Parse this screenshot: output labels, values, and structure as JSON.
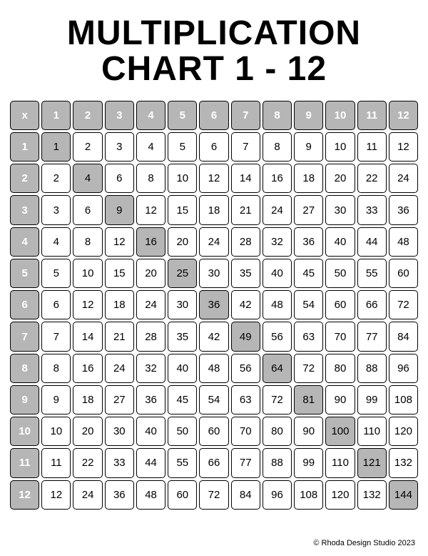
{
  "title_line1": "MULTIPLICATION",
  "title_line2": "CHART 1 - 12",
  "copyright": "© Rhoda Design Studio 2023",
  "chart": {
    "type": "table",
    "corner_label": "x",
    "size": 12,
    "colors": {
      "header_bg": "#b6b6b6",
      "header_text": "#ffffff",
      "diag_bg": "#b6b6b6",
      "cell_bg": "#ffffff",
      "cell_text": "#000000",
      "border": "#000000",
      "page_bg": "#ffffff"
    },
    "typography": {
      "title_fontsize": 48,
      "title_weight": 900,
      "cell_fontsize": 15,
      "header_fontsize": 15,
      "header_weight": 700,
      "copyright_fontsize": 11
    },
    "layout": {
      "cell_gap": 3,
      "cell_border_radius": 5,
      "cell_border_width": 1.5,
      "grid_padding_x": 14
    },
    "col_headers": [
      "1",
      "2",
      "3",
      "4",
      "5",
      "6",
      "7",
      "8",
      "9",
      "10",
      "11",
      "12"
    ],
    "row_headers": [
      "1",
      "2",
      "3",
      "4",
      "5",
      "6",
      "7",
      "8",
      "9",
      "10",
      "11",
      "12"
    ],
    "rows": [
      [
        1,
        2,
        3,
        4,
        5,
        6,
        7,
        8,
        9,
        10,
        11,
        12
      ],
      [
        2,
        4,
        6,
        8,
        10,
        12,
        14,
        16,
        18,
        20,
        22,
        24
      ],
      [
        3,
        6,
        9,
        12,
        15,
        18,
        21,
        24,
        27,
        30,
        33,
        36
      ],
      [
        4,
        8,
        12,
        16,
        20,
        24,
        28,
        32,
        36,
        40,
        44,
        48
      ],
      [
        5,
        10,
        15,
        20,
        25,
        30,
        35,
        40,
        45,
        50,
        55,
        60
      ],
      [
        6,
        12,
        18,
        24,
        30,
        36,
        42,
        48,
        54,
        60,
        66,
        72
      ],
      [
        7,
        14,
        21,
        28,
        35,
        42,
        49,
        56,
        63,
        70,
        77,
        84
      ],
      [
        8,
        16,
        24,
        32,
        40,
        48,
        56,
        64,
        72,
        80,
        88,
        96
      ],
      [
        9,
        18,
        27,
        36,
        45,
        54,
        63,
        72,
        81,
        90,
        99,
        108
      ],
      [
        10,
        20,
        30,
        40,
        50,
        60,
        70,
        80,
        90,
        100,
        110,
        120
      ],
      [
        11,
        22,
        33,
        44,
        55,
        66,
        77,
        88,
        99,
        110,
        121,
        132
      ],
      [
        12,
        24,
        36,
        48,
        60,
        72,
        84,
        96,
        108,
        120,
        132,
        144
      ]
    ]
  }
}
